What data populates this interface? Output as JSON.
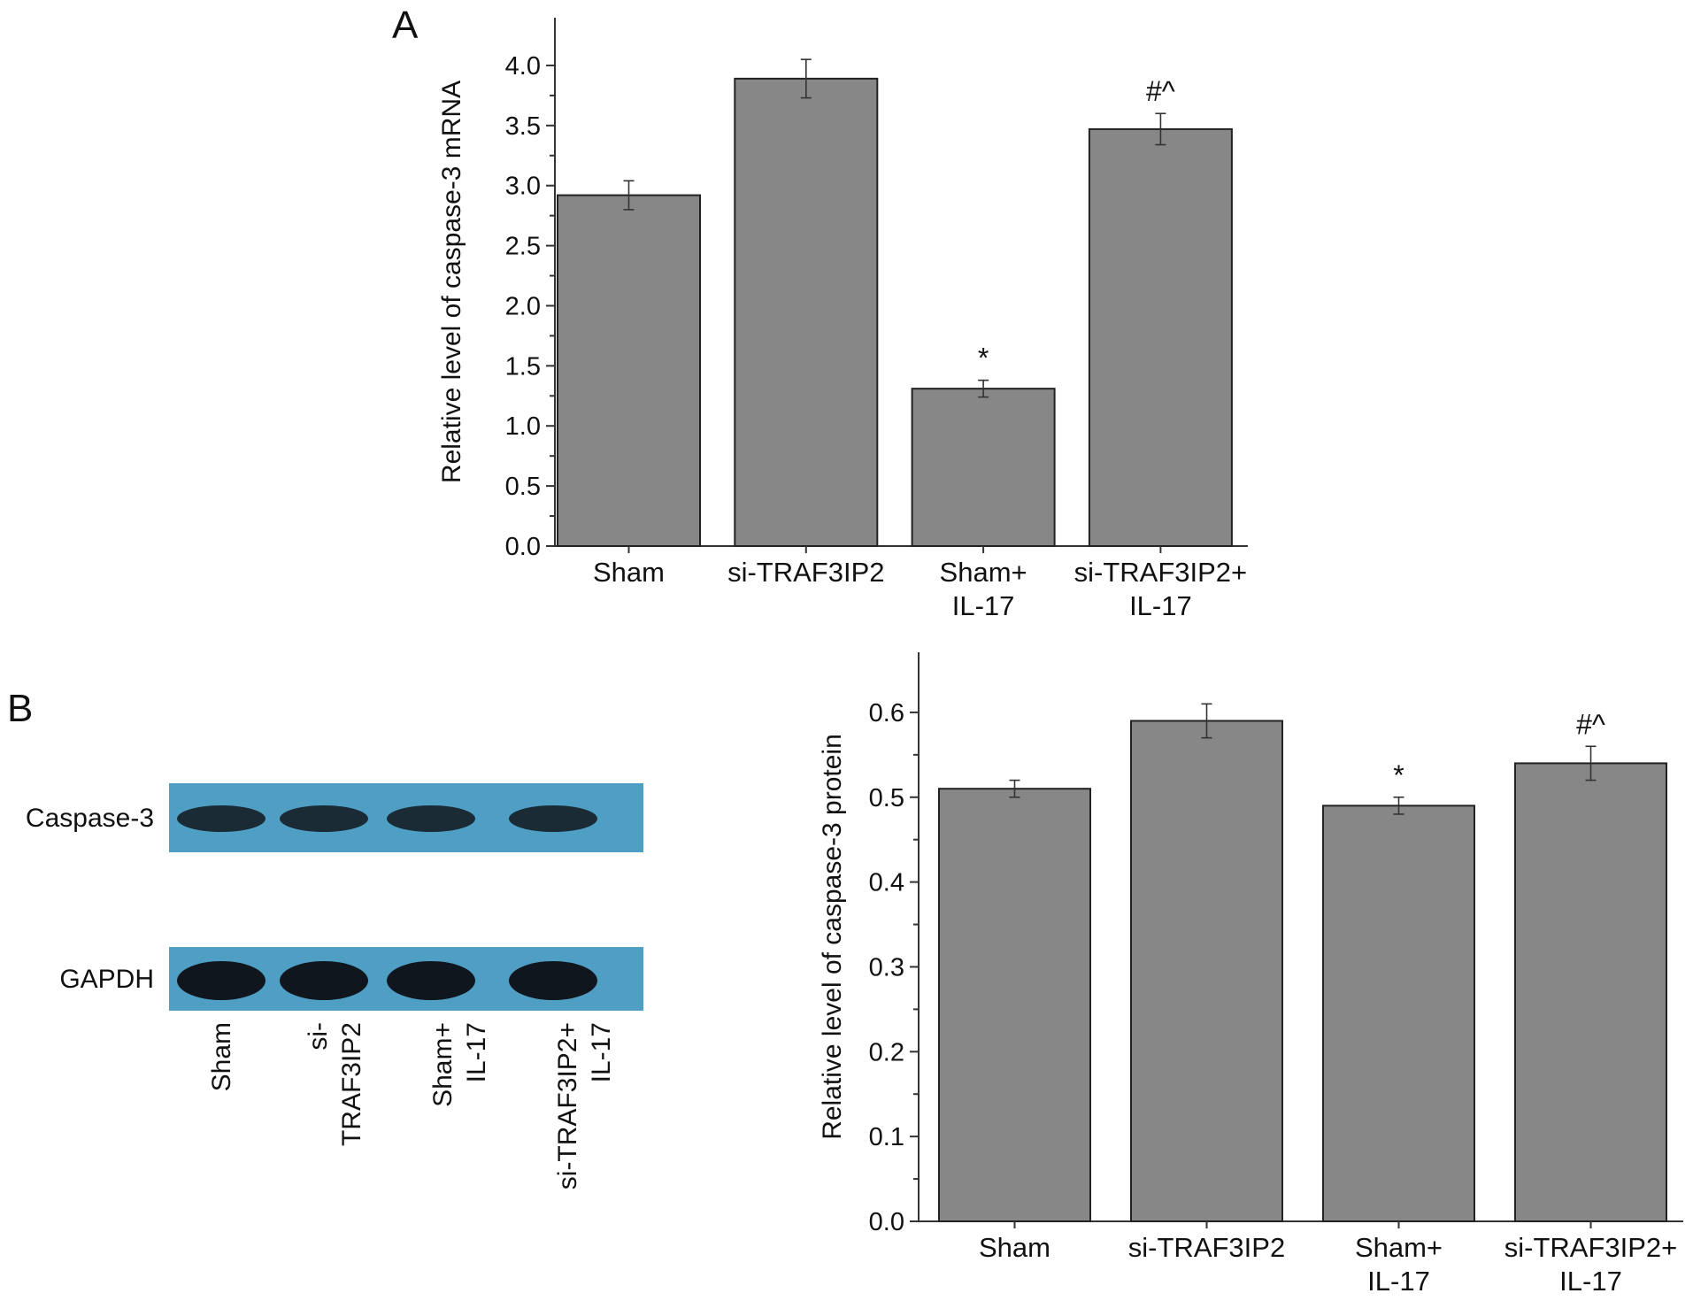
{
  "panels": {
    "a": "A",
    "b": "B"
  },
  "colors": {
    "bar": "#878787",
    "bar_edge": "#222222",
    "axis": "#333333",
    "blot_bg": "#4f9fc4",
    "band": "#10161d"
  },
  "chart_data": [
    {
      "type": "bar",
      "panel": "A",
      "categories": [
        [
          "Sham"
        ],
        [
          "si-TRAF3IP2"
        ],
        [
          "Sham+",
          "IL-17"
        ],
        [
          "si-TRAF3IP2+",
          "IL-17"
        ]
      ],
      "values": [
        2.92,
        3.89,
        1.31,
        3.47
      ],
      "errors": [
        0.12,
        0.16,
        0.07,
        0.13
      ],
      "annotations": [
        "",
        "",
        "*",
        "#^"
      ],
      "ylabel": "Relative level of caspase-3 mRNA",
      "xlabel": "",
      "ylim": [
        0,
        4.25
      ],
      "yticks": [
        0,
        0.5,
        1.0,
        1.5,
        2.0,
        2.5,
        3.0,
        3.5,
        4.0
      ],
      "tick_decimals": 1,
      "grid": false
    },
    {
      "type": "bar",
      "panel": "B",
      "categories": [
        [
          "Sham"
        ],
        [
          "si-TRAF3IP2"
        ],
        [
          "Sham+",
          "IL-17"
        ],
        [
          "si-TRAF3IP2+",
          "IL-17"
        ]
      ],
      "values": [
        0.51,
        0.59,
        0.49,
        0.54
      ],
      "errors": [
        0.01,
        0.02,
        0.01,
        0.02
      ],
      "annotations": [
        "",
        "",
        "*",
        "#^"
      ],
      "ylabel": "Relative level of caspase-3 protein",
      "xlabel": "",
      "ylim": [
        0,
        0.65
      ],
      "yticks": [
        0,
        0.1,
        0.2,
        0.3,
        0.4,
        0.5,
        0.6
      ],
      "tick_decimals": 1,
      "grid": false
    }
  ],
  "blot": {
    "bands": [
      "Caspase-3",
      "GAPDH"
    ],
    "lanes": [
      [
        "Sham"
      ],
      [
        "si-",
        "TRAF3IP2"
      ],
      [
        "Sham+",
        "IL-17"
      ],
      [
        "si-TRAF3IP2+",
        "IL-17"
      ]
    ]
  }
}
